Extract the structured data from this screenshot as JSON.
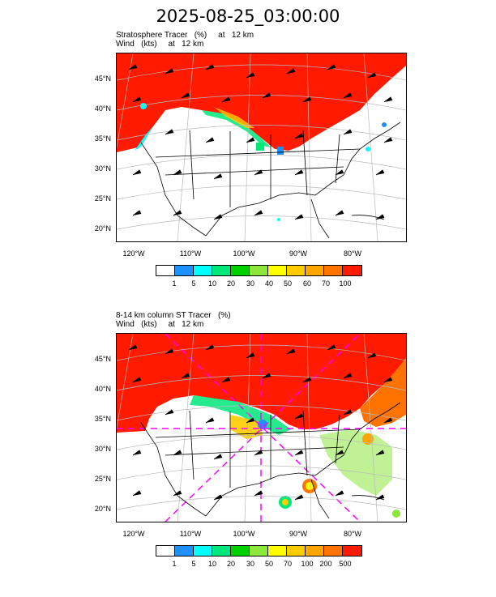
{
  "title": "2025-08-25_03:00:00",
  "colors": {
    "land_stratosphere": "#ff1a00",
    "colorbar": [
      "#ffffff",
      "#1e90ff",
      "#00ffff",
      "#00e87a",
      "#00d000",
      "#8ce63c",
      "#ffff00",
      "#ffcc00",
      "#ffa500",
      "#ff7300",
      "#ff1a00"
    ]
  },
  "panels": [
    {
      "line1": "Stratosphere Tracer   (%)     at   12 km",
      "line2": "Wind   (kts)     at   12 km",
      "lat_labels": [
        "45°N",
        "40°N",
        "35°N",
        "30°N",
        "25°N",
        "20°N"
      ],
      "lon_labels": [
        "120°W",
        "110°W",
        "100°W",
        "90°W",
        "80°W"
      ],
      "colorbar_labels": [
        "1",
        "5",
        "10",
        "20",
        "30",
        "40",
        "50",
        "60",
        "70",
        "100"
      ]
    },
    {
      "line1": "8-14 km column ST Tracer   (%)",
      "line2": "Wind   (kts)     at   12 km",
      "lat_labels": [
        "45°N",
        "40°N",
        "35°N",
        "30°N",
        "25°N",
        "20°N"
      ],
      "lon_labels": [
        "120°W",
        "110°W",
        "100°W",
        "90°W",
        "80°W"
      ],
      "colorbar_labels": [
        "1",
        "5",
        "10",
        "20",
        "30",
        "50",
        "70",
        "100",
        "200",
        "500"
      ]
    }
  ]
}
